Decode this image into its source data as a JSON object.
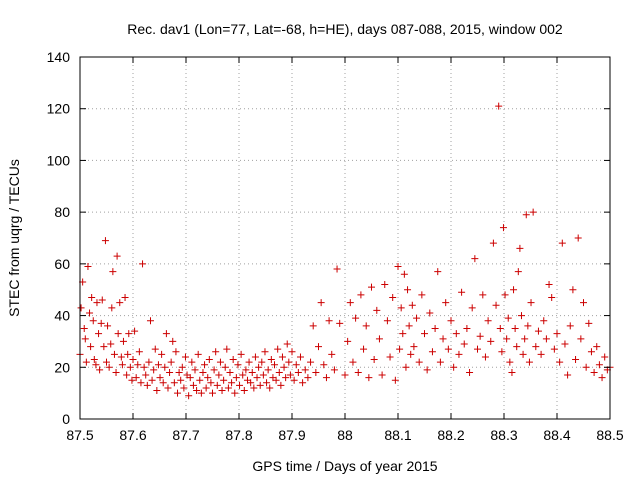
{
  "chart_data": {
    "type": "scatter",
    "title": "Rec. dav1 (Lon=77, Lat=-68, h=HE), days 087-088, 2015, window 002",
    "xlabel": "GPS time / Days of year 2015",
    "ylabel": "STEC from uqrg / TECUs",
    "xlim": [
      87.5,
      88.5
    ],
    "ylim": [
      0,
      140
    ],
    "xticks": [
      "87.5",
      "87.6",
      "87.7",
      "87.8",
      "87.9",
      "88",
      "88.1",
      "88.2",
      "88.3",
      "88.4",
      "88.5"
    ],
    "yticks": [
      "0",
      "20",
      "40",
      "60",
      "80",
      "100",
      "120",
      "140"
    ],
    "grid": true,
    "marker": "+",
    "color": "#cc0000",
    "series": [
      {
        "name": "STEC",
        "points": [
          [
            87.5,
            25
          ],
          [
            87.502,
            43
          ],
          [
            87.505,
            53
          ],
          [
            87.508,
            35
          ],
          [
            87.51,
            31
          ],
          [
            87.512,
            22
          ],
          [
            87.515,
            59
          ],
          [
            87.518,
            41
          ],
          [
            87.52,
            28
          ],
          [
            87.522,
            47
          ],
          [
            87.525,
            38
          ],
          [
            87.527,
            23
          ],
          [
            87.53,
            21
          ],
          [
            87.532,
            45
          ],
          [
            87.535,
            33
          ],
          [
            87.537,
            19
          ],
          [
            87.54,
            37
          ],
          [
            87.542,
            46
          ],
          [
            87.545,
            28
          ],
          [
            87.548,
            69
          ],
          [
            87.55,
            22
          ],
          [
            87.552,
            36
          ],
          [
            87.555,
            20
          ],
          [
            87.558,
            29
          ],
          [
            87.56,
            43
          ],
          [
            87.562,
            57
          ],
          [
            87.565,
            25
          ],
          [
            87.568,
            18
          ],
          [
            87.57,
            63
          ],
          [
            87.572,
            33
          ],
          [
            87.575,
            45
          ],
          [
            87.578,
            24
          ],
          [
            87.58,
            21
          ],
          [
            87.582,
            30
          ],
          [
            87.585,
            47
          ],
          [
            87.588,
            17
          ],
          [
            87.59,
            25
          ],
          [
            87.592,
            33
          ],
          [
            87.595,
            20
          ],
          [
            87.598,
            15
          ],
          [
            87.6,
            23
          ],
          [
            87.603,
            34
          ],
          [
            87.606,
            16
          ],
          [
            87.609,
            21
          ],
          [
            87.612,
            26
          ],
          [
            87.615,
            14
          ],
          [
            87.618,
            60
          ],
          [
            87.621,
            20
          ],
          [
            87.624,
            17
          ],
          [
            87.627,
            13
          ],
          [
            87.63,
            22
          ],
          [
            87.633,
            38
          ],
          [
            87.636,
            15
          ],
          [
            87.639,
            19
          ],
          [
            87.642,
            27
          ],
          [
            87.645,
            11
          ],
          [
            87.648,
            21
          ],
          [
            87.651,
            16
          ],
          [
            87.654,
            25
          ],
          [
            87.657,
            14
          ],
          [
            87.66,
            20
          ],
          [
            87.663,
            33
          ],
          [
            87.666,
            12
          ],
          [
            87.669,
            18
          ],
          [
            87.672,
            22
          ],
          [
            87.675,
            30
          ],
          [
            87.678,
            14
          ],
          [
            87.681,
            26
          ],
          [
            87.684,
            10
          ],
          [
            87.687,
            18
          ],
          [
            87.69,
            15
          ],
          [
            87.693,
            20
          ],
          [
            87.696,
            12
          ],
          [
            87.699,
            24
          ],
          [
            87.702,
            17
          ],
          [
            87.705,
            9
          ],
          [
            87.708,
            16
          ],
          [
            87.711,
            22
          ],
          [
            87.714,
            13
          ],
          [
            87.717,
            19
          ],
          [
            87.72,
            11
          ],
          [
            87.723,
            25
          ],
          [
            87.726,
            15
          ],
          [
            87.729,
            10
          ],
          [
            87.732,
            18
          ],
          [
            87.735,
            21
          ],
          [
            87.738,
            12
          ],
          [
            87.741,
            16
          ],
          [
            87.744,
            23
          ],
          [
            87.747,
            14
          ],
          [
            87.75,
            10
          ],
          [
            87.753,
            19
          ],
          [
            87.756,
            26
          ],
          [
            87.759,
            13
          ],
          [
            87.762,
            17
          ],
          [
            87.765,
            22
          ],
          [
            87.768,
            11
          ],
          [
            87.771,
            15
          ],
          [
            87.774,
            20
          ],
          [
            87.777,
            27
          ],
          [
            87.78,
            12
          ],
          [
            87.783,
            18
          ],
          [
            87.786,
            14
          ],
          [
            87.789,
            23
          ],
          [
            87.792,
            10
          ],
          [
            87.795,
            16
          ],
          [
            87.798,
            21
          ],
          [
            87.801,
            13
          ],
          [
            87.804,
            25
          ],
          [
            87.807,
            17
          ],
          [
            87.81,
            11
          ],
          [
            87.813,
            19
          ],
          [
            87.816,
            15
          ],
          [
            87.819,
            22
          ],
          [
            87.822,
            14
          ],
          [
            87.825,
            18
          ],
          [
            87.828,
            12
          ],
          [
            87.831,
            24
          ],
          [
            87.834,
            16
          ],
          [
            87.837,
            20
          ],
          [
            87.84,
            13
          ],
          [
            87.843,
            22
          ],
          [
            87.846,
            17
          ],
          [
            87.849,
            26
          ],
          [
            87.852,
            14
          ],
          [
            87.855,
            19
          ],
          [
            87.858,
            12
          ],
          [
            87.861,
            23
          ],
          [
            87.864,
            16
          ],
          [
            87.867,
            21
          ],
          [
            87.87,
            15
          ],
          [
            87.873,
            27
          ],
          [
            87.876,
            18
          ],
          [
            87.879,
            13
          ],
          [
            87.882,
            24
          ],
          [
            87.885,
            20
          ],
          [
            87.888,
            16
          ],
          [
            87.891,
            29
          ],
          [
            87.894,
            22
          ],
          [
            87.897,
            17
          ],
          [
            87.9,
            26
          ],
          [
            87.904,
            15
          ],
          [
            87.908,
            21
          ],
          [
            87.912,
            18
          ],
          [
            87.916,
            24
          ],
          [
            87.92,
            14
          ],
          [
            87.925,
            19
          ],
          [
            87.93,
            16
          ],
          [
            87.935,
            22
          ],
          [
            87.94,
            36
          ],
          [
            87.945,
            18
          ],
          [
            87.95,
            28
          ],
          [
            87.955,
            45
          ],
          [
            87.96,
            21
          ],
          [
            87.965,
            16
          ],
          [
            87.97,
            38
          ],
          [
            87.975,
            25
          ],
          [
            87.98,
            19
          ],
          [
            87.985,
            58
          ],
          [
            87.99,
            37
          ],
          [
            88.0,
            17
          ],
          [
            88.005,
            30
          ],
          [
            88.01,
            45
          ],
          [
            88.015,
            22
          ],
          [
            88.02,
            39
          ],
          [
            88.025,
            18
          ],
          [
            88.03,
            48
          ],
          [
            88.035,
            27
          ],
          [
            88.04,
            36
          ],
          [
            88.045,
            16
          ],
          [
            88.05,
            51
          ],
          [
            88.055,
            23
          ],
          [
            88.06,
            42
          ],
          [
            88.065,
            31
          ],
          [
            88.07,
            17
          ],
          [
            88.075,
            52
          ],
          [
            88.08,
            38
          ],
          [
            88.085,
            24
          ],
          [
            88.09,
            47
          ],
          [
            88.095,
            15
          ],
          [
            88.1,
            59
          ],
          [
            88.103,
            27
          ],
          [
            88.106,
            43
          ],
          [
            88.109,
            33
          ],
          [
            88.112,
            56
          ],
          [
            88.115,
            20
          ],
          [
            88.118,
            50
          ],
          [
            88.121,
            36
          ],
          [
            88.124,
            25
          ],
          [
            88.127,
            44
          ],
          [
            88.13,
            28
          ],
          [
            88.135,
            39
          ],
          [
            88.14,
            22
          ],
          [
            88.145,
            48
          ],
          [
            88.15,
            33
          ],
          [
            88.155,
            19
          ],
          [
            88.16,
            41
          ],
          [
            88.165,
            26
          ],
          [
            88.17,
            35
          ],
          [
            88.175,
            57
          ],
          [
            88.18,
            22
          ],
          [
            88.185,
            31
          ],
          [
            88.19,
            45
          ],
          [
            88.195,
            27
          ],
          [
            88.2,
            38
          ],
          [
            88.205,
            20
          ],
          [
            88.21,
            33
          ],
          [
            88.215,
            25
          ],
          [
            88.22,
            49
          ],
          [
            88.225,
            29
          ],
          [
            88.23,
            35
          ],
          [
            88.235,
            18
          ],
          [
            88.24,
            43
          ],
          [
            88.245,
            62
          ],
          [
            88.25,
            27
          ],
          [
            88.255,
            32
          ],
          [
            88.26,
            48
          ],
          [
            88.265,
            24
          ],
          [
            88.27,
            38
          ],
          [
            88.275,
            30
          ],
          [
            88.28,
            68
          ],
          [
            88.285,
            44
          ],
          [
            88.29,
            121
          ],
          [
            88.293,
            35
          ],
          [
            88.296,
            26
          ],
          [
            88.299,
            74
          ],
          [
            88.302,
            48
          ],
          [
            88.305,
            31
          ],
          [
            88.308,
            39
          ],
          [
            88.311,
            22
          ],
          [
            88.315,
            18
          ],
          [
            88.318,
            50
          ],
          [
            88.321,
            35
          ],
          [
            88.324,
            28
          ],
          [
            88.327,
            57
          ],
          [
            88.33,
            66
          ],
          [
            88.333,
            40
          ],
          [
            88.336,
            25
          ],
          [
            88.339,
            31
          ],
          [
            88.342,
            79
          ],
          [
            88.345,
            36
          ],
          [
            88.348,
            22
          ],
          [
            88.351,
            45
          ],
          [
            88.355,
            80
          ],
          [
            88.36,
            28
          ],
          [
            88.365,
            34
          ],
          [
            88.37,
            25
          ],
          [
            88.375,
            38
          ],
          [
            88.38,
            31
          ],
          [
            88.385,
            52
          ],
          [
            88.39,
            47
          ],
          [
            88.395,
            27
          ],
          [
            88.4,
            33
          ],
          [
            88.405,
            22
          ],
          [
            88.41,
            68
          ],
          [
            88.415,
            29
          ],
          [
            88.42,
            17
          ],
          [
            88.425,
            36
          ],
          [
            88.43,
            50
          ],
          [
            88.435,
            23
          ],
          [
            88.44,
            70
          ],
          [
            88.445,
            31
          ],
          [
            88.45,
            45
          ],
          [
            88.455,
            20
          ],
          [
            88.46,
            37
          ],
          [
            88.465,
            26
          ],
          [
            88.47,
            18
          ],
          [
            88.475,
            28
          ],
          [
            88.48,
            21
          ],
          [
            88.485,
            16
          ],
          [
            88.49,
            24
          ],
          [
            88.495,
            19
          ],
          [
            88.5,
            20
          ]
        ]
      }
    ]
  }
}
